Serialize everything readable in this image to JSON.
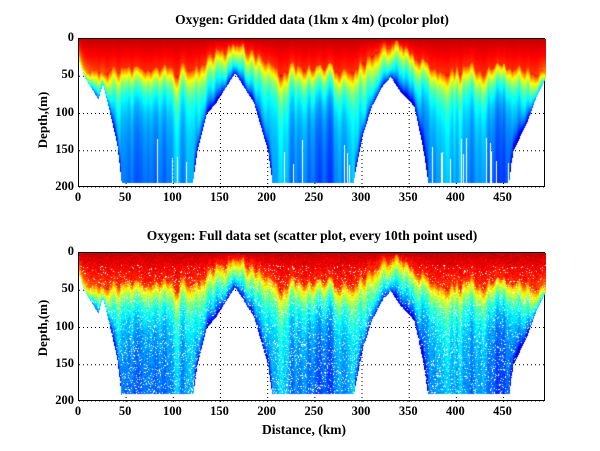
{
  "chart_data": [
    {
      "type": "heatmap",
      "title": "Oxygen: Gridded data (1km x 4m) (pcolor plot)",
      "xlabel": "",
      "ylabel": "Depth,(m)",
      "xlim": [
        0,
        495
      ],
      "ylim": [
        200,
        0
      ],
      "y_reversed": true,
      "xticks": [
        "0",
        "50",
        "100",
        "150",
        "200",
        "250",
        "300",
        "350",
        "400",
        "450"
      ],
      "yticks": [
        "0",
        "50",
        "100",
        "150",
        "200"
      ],
      "grid": true,
      "colormap": "jet",
      "colormap_note": "red = high oxygen near surface, blue = low oxygen at depth",
      "section_bottom_depth_m": {
        "distance_km": [
          0,
          5,
          20,
          25,
          30,
          40,
          45,
          120,
          125,
          135,
          145,
          160,
          165,
          170,
          185,
          200,
          205,
          290,
          300,
          310,
          320,
          330,
          340,
          355,
          365,
          370,
          455,
          460,
          475,
          485,
          495
        ],
        "depth_m": [
          30,
          50,
          80,
          60,
          85,
          140,
          195,
          195,
          150,
          100,
          85,
          55,
          45,
          55,
          85,
          150,
          195,
          195,
          130,
          90,
          65,
          50,
          70,
          90,
          150,
          195,
          195,
          150,
          110,
          75,
          50
        ]
      }
    },
    {
      "type": "scatter",
      "title": "Oxygen: Full data set (scatter plot, every 10th point used)",
      "xlabel": "Distance, (km)",
      "ylabel": "Depth,(m)",
      "xlim": [
        0,
        495
      ],
      "ylim": [
        200,
        0
      ],
      "y_reversed": true,
      "xticks": [
        "0",
        "50",
        "100",
        "150",
        "200",
        "250",
        "300",
        "350",
        "400",
        "450"
      ],
      "yticks": [
        "0",
        "50",
        "100",
        "150",
        "200"
      ],
      "grid": true,
      "colormap": "jet"
    }
  ]
}
